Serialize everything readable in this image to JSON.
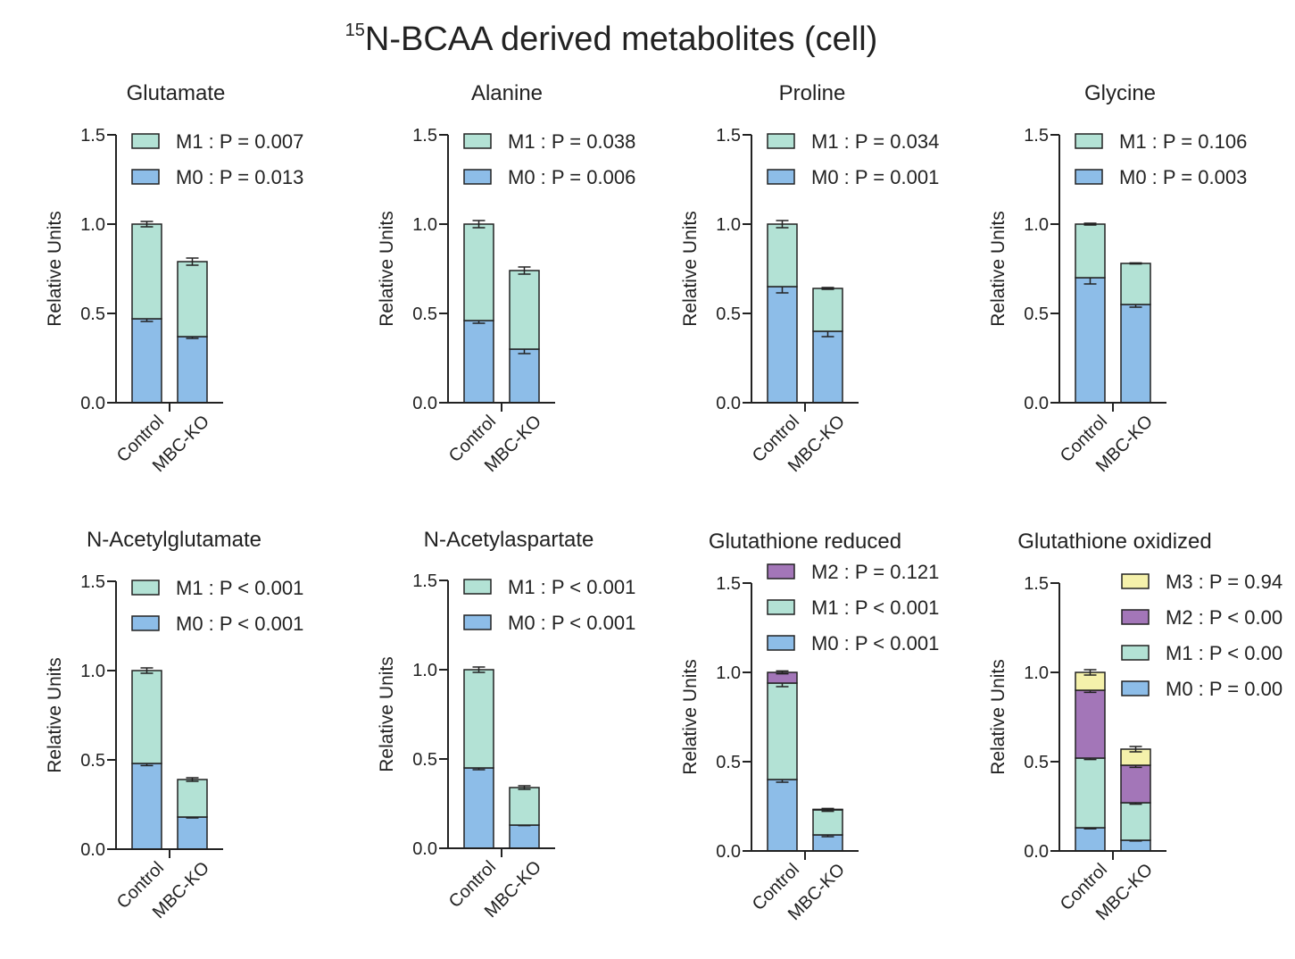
{
  "figure": {
    "title_superscript": "15",
    "title_main": "N-BCAA derived metabolites (cell)"
  },
  "colors": {
    "M0": "#8dbde8",
    "M1": "#b3e2d5",
    "M2": "#a376b8",
    "M3": "#f5f1ab",
    "axis": "#222222"
  },
  "chart_data": [
    {
      "type": "bar",
      "stacked": true,
      "title": "Glutamate",
      "categories": [
        "Control",
        "MBC-KO"
      ],
      "ylabel": "Relative Units",
      "ylim": [
        0,
        1.5
      ],
      "yticks": [
        "0.0",
        "0.5",
        "1.0",
        "1.5"
      ],
      "ytick_values": [
        0,
        0.5,
        1.0,
        1.5
      ],
      "series": [
        {
          "name": "M0",
          "label": "M0 : P = 0.013",
          "values": [
            0.47,
            0.37
          ],
          "errors": [
            0.015,
            0.01
          ]
        },
        {
          "name": "M1",
          "label": "M1 : P = 0.007",
          "values": [
            0.53,
            0.42
          ],
          "errors": [
            0.015,
            0.02
          ]
        }
      ]
    },
    {
      "type": "bar",
      "stacked": true,
      "title": "Alanine",
      "categories": [
        "Control",
        "MBC-KO"
      ],
      "ylabel": "Relative Units",
      "ylim": [
        0,
        1.5
      ],
      "yticks": [
        "0.0",
        "0.5",
        "1.0",
        "1.5"
      ],
      "ytick_values": [
        0,
        0.5,
        1.0,
        1.5
      ],
      "series": [
        {
          "name": "M0",
          "label": "M0 : P = 0.006",
          "values": [
            0.46,
            0.3
          ],
          "errors": [
            0.015,
            0.025
          ]
        },
        {
          "name": "M1",
          "label": "M1 : P = 0.038",
          "values": [
            0.54,
            0.44
          ],
          "errors": [
            0.02,
            0.02
          ]
        }
      ]
    },
    {
      "type": "bar",
      "stacked": true,
      "title": "Proline",
      "categories": [
        "Control",
        "MBC-KO"
      ],
      "ylabel": "Relative Units",
      "ylim": [
        0,
        1.5
      ],
      "yticks": [
        "0.0",
        "0.5",
        "1.0",
        "1.5"
      ],
      "ytick_values": [
        0,
        0.5,
        1.0,
        1.5
      ],
      "series": [
        {
          "name": "M0",
          "label": "M0 : P = 0.001",
          "values": [
            0.65,
            0.4
          ],
          "errors": [
            0.035,
            0.03
          ]
        },
        {
          "name": "M1",
          "label": "M1 : P = 0.034",
          "values": [
            0.35,
            0.24
          ],
          "errors": [
            0.02,
            0.005
          ]
        }
      ]
    },
    {
      "type": "bar",
      "stacked": true,
      "title": "Glycine",
      "categories": [
        "Control",
        "MBC-KO"
      ],
      "ylabel": "Relative Units",
      "ylim": [
        0,
        1.5
      ],
      "yticks": [
        "0.0",
        "0.5",
        "1.0",
        "1.5"
      ],
      "ytick_values": [
        0,
        0.5,
        1.0,
        1.5
      ],
      "series": [
        {
          "name": "M0",
          "label": "M0 : P = 0.003",
          "values": [
            0.7,
            0.55
          ],
          "errors": [
            0.035,
            0.015
          ]
        },
        {
          "name": "M1",
          "label": "M1 : P = 0.106",
          "values": [
            0.3,
            0.23
          ],
          "errors": [
            0.005,
            0.003
          ]
        }
      ]
    },
    {
      "type": "bar",
      "stacked": true,
      "title": "N-Acetylglutamate",
      "categories": [
        "Control",
        "MBC-KO"
      ],
      "ylabel": "Relative Units",
      "ylim": [
        0,
        1.5
      ],
      "yticks": [
        "0.0",
        "0.5",
        "1.0",
        "1.5"
      ],
      "ytick_values": [
        0,
        0.5,
        1.0,
        1.5
      ],
      "series": [
        {
          "name": "M0",
          "label": "M0 : P < 0.001",
          "values": [
            0.48,
            0.18
          ],
          "errors": [
            0.012,
            0.005
          ]
        },
        {
          "name": "M1",
          "label": "M1 : P < 0.001",
          "values": [
            0.52,
            0.21
          ],
          "errors": [
            0.015,
            0.01
          ]
        }
      ]
    },
    {
      "type": "bar",
      "stacked": true,
      "title": "N-Acetylaspartate",
      "categories": [
        "Control",
        "MBC-KO"
      ],
      "ylabel": "Relative Units",
      "ylim": [
        0,
        1.5
      ],
      "yticks": [
        "0.0",
        "0.5",
        "1.0",
        "1.5"
      ],
      "ytick_values": [
        0,
        0.5,
        1.0,
        1.5
      ],
      "series": [
        {
          "name": "M0",
          "label": "M0 : P < 0.001",
          "values": [
            0.45,
            0.13
          ],
          "errors": [
            0.01,
            0.003
          ]
        },
        {
          "name": "M1",
          "label": "M1 : P < 0.001",
          "values": [
            0.55,
            0.21
          ],
          "errors": [
            0.015,
            0.01
          ]
        }
      ]
    },
    {
      "type": "bar",
      "stacked": true,
      "title": "Glutathione reduced",
      "categories": [
        "Control",
        "MBC-KO"
      ],
      "ylabel": "Relative Units",
      "ylim": [
        0,
        1.5
      ],
      "yticks": [
        "0.0",
        "0.5",
        "1.0",
        "1.5"
      ],
      "ytick_values": [
        0,
        0.5,
        1.0,
        1.5
      ],
      "series": [
        {
          "name": "M0",
          "label": "M0 : P < 0.001",
          "values": [
            0.4,
            0.09
          ],
          "errors": [
            0.015,
            0.01
          ]
        },
        {
          "name": "M1",
          "label": "M1 : P < 0.001",
          "values": [
            0.54,
            0.14
          ],
          "errors": [
            0.02,
            0.008
          ]
        },
        {
          "name": "M2",
          "label": "M2 : P = 0.121",
          "values": [
            0.06,
            0.003
          ],
          "errors": [
            0.008,
            0.003
          ]
        }
      ]
    },
    {
      "type": "bar",
      "stacked": true,
      "title": "Glutathione oxidized",
      "categories": [
        "Control",
        "MBC-KO"
      ],
      "ylabel": "Relative Units",
      "ylim": [
        0,
        1.5
      ],
      "yticks": [
        "0.0",
        "0.5",
        "1.0",
        "1.5"
      ],
      "ytick_values": [
        0,
        0.5,
        1.0,
        1.5
      ],
      "series": [
        {
          "name": "M0",
          "label": "M0 : P = 0.00",
          "values": [
            0.13,
            0.06
          ],
          "errors": [
            0.006,
            0.004
          ]
        },
        {
          "name": "M1",
          "label": "M1 : P < 0.00",
          "values": [
            0.39,
            0.21
          ],
          "errors": [
            0.008,
            0.008
          ]
        },
        {
          "name": "M2",
          "label": "M2 : P < 0.00",
          "values": [
            0.38,
            0.21
          ],
          "errors": [
            0.012,
            0.012
          ]
        },
        {
          "name": "M3",
          "label": "M3 : P = 0.94",
          "values": [
            0.1,
            0.09
          ],
          "errors": [
            0.015,
            0.015
          ]
        }
      ]
    }
  ]
}
